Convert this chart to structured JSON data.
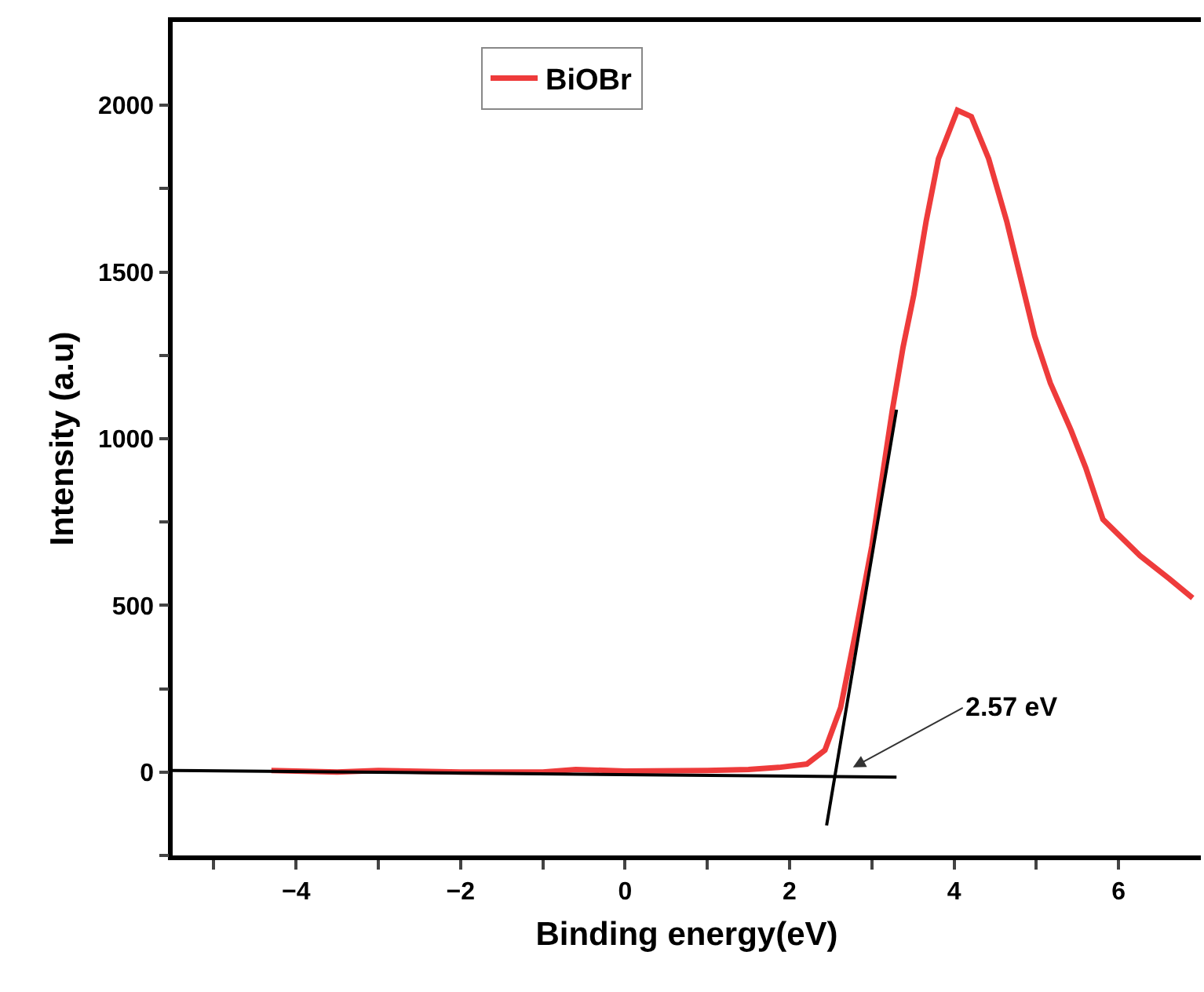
{
  "chart_data": {
    "type": "line",
    "xlabel": "Binding energy(eV)",
    "ylabel": "Intensity (a.u)",
    "series": [
      {
        "name": "BiOBr",
        "color": "#ee3b3b",
        "x": [
          -4.3,
          -3.5,
          -3.0,
          -2.0,
          -1.0,
          -0.6,
          0.0,
          1.0,
          1.5,
          1.87,
          2.21,
          2.43,
          2.62,
          2.81,
          3.0,
          3.25,
          3.38,
          3.51,
          3.66,
          3.81,
          4.04,
          4.21,
          4.42,
          4.64,
          4.98,
          5.17,
          5.42,
          5.6,
          5.81,
          6.26,
          6.62,
          6.9
        ],
        "values": [
          5,
          0,
          5,
          0,
          0,
          8,
          3,
          5,
          8,
          14,
          24,
          66,
          193,
          428,
          678,
          1087,
          1275,
          1431,
          1652,
          1840,
          1985,
          1966,
          1840,
          1652,
          1308,
          1167,
          1026,
          913,
          758,
          649,
          579,
          522
        ]
      },
      {
        "type": "line",
        "color": "#000000",
        "x": [
          -5.5,
          3.3
        ],
        "values": [
          5,
          -15
        ]
      },
      {
        "type": "line",
        "color": "#000000",
        "x": [
          2.45,
          3.3
        ],
        "values": [
          -160,
          1087
        ]
      }
    ],
    "annotations": [
      {
        "text": "2.57 eV",
        "x": 2.77,
        "y": 14
      }
    ],
    "xlim": [
      -5.5,
      7
    ],
    "xticks": [
      {
        "value": -5,
        "label": null
      },
      -4,
      {
        "value": -3,
        "label": null
      },
      -2,
      {
        "value": -1,
        "label": null
      },
      0,
      {
        "value": 1,
        "label": null
      },
      2,
      {
        "value": 3,
        "label": null
      },
      4,
      {
        "value": 5,
        "label": null
      },
      6
    ],
    "ylim": [
      -250,
      2250
    ],
    "yticks": [
      {
        "value": -250,
        "label": null
      },
      0,
      {
        "value": 250,
        "label": null
      },
      500,
      {
        "value": 750,
        "label": null
      },
      1000,
      {
        "value": 1250,
        "label": null
      },
      1500,
      {
        "value": 1750,
        "label": null
      },
      2000
    ],
    "legend": "top",
    "marker": "none",
    "line_style": "solid"
  }
}
